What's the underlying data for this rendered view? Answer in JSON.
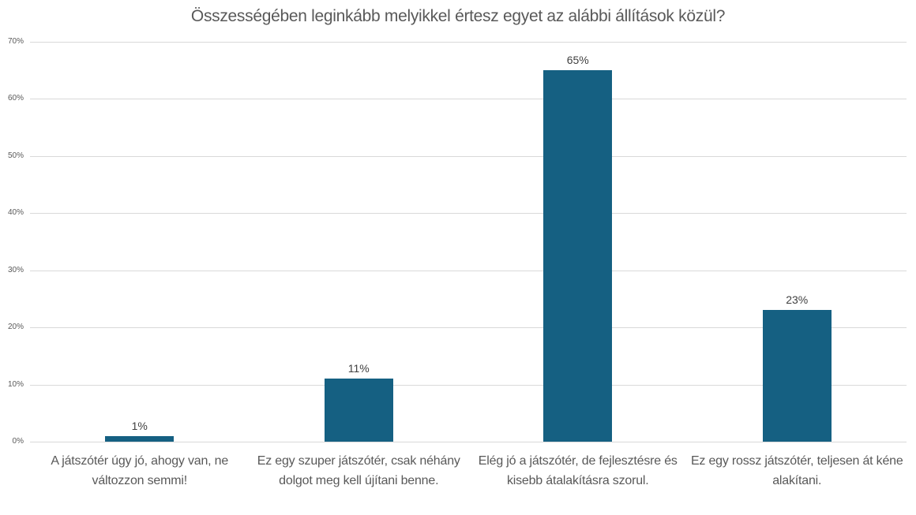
{
  "chart_data": {
    "type": "bar",
    "title": "Összességében leginkább melyikkel értesz egyet az alábbi állítások közül?",
    "categories": [
      "A játszótér úgy jó, ahogy van, ne változzon semmi!",
      "Ez egy szuper játszótér, csak néhány dolgot meg kell újítani benne.",
      "Elég jó a játszótér, de fejlesztésre és kisebb átalakításra szorul.",
      "Ez egy rossz játszótér, teljesen át kéne alakítani."
    ],
    "values": [
      1,
      11,
      65,
      23
    ],
    "data_labels": [
      "1%",
      "11%",
      "65%",
      "23%"
    ],
    "xlabel": "",
    "ylabel": "",
    "ylim": [
      0,
      70
    ],
    "ytick_step": 10,
    "yticks": [
      "0%",
      "10%",
      "20%",
      "30%",
      "40%",
      "50%",
      "60%",
      "70%"
    ],
    "grid": true,
    "legend": false,
    "colors": {
      "bar": "#156082",
      "gridline": "#d9d9d9",
      "title": "#595959",
      "axis_label": "#595959",
      "data_label": "#404040",
      "background": "#ffffff"
    }
  }
}
